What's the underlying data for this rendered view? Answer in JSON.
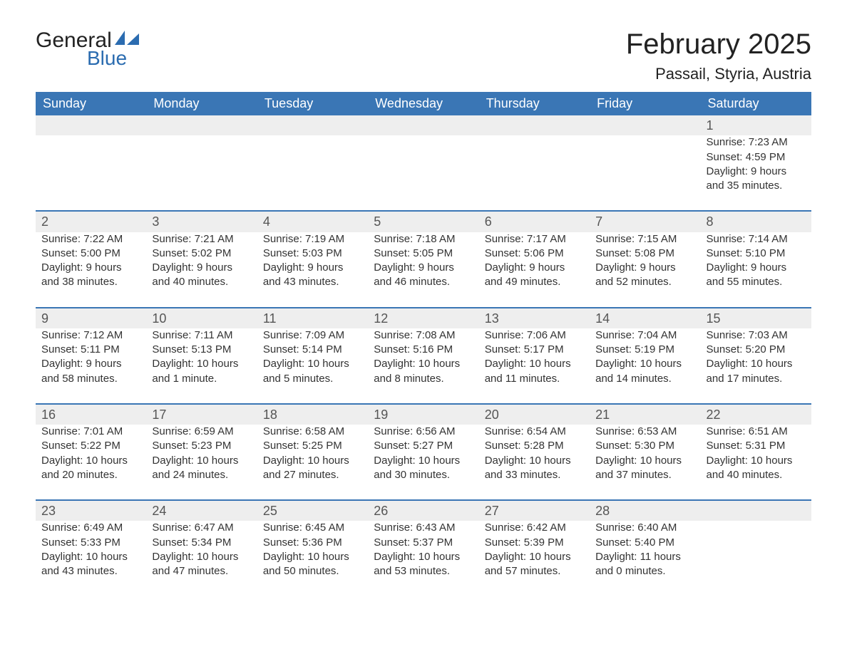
{
  "logo": {
    "general": "General",
    "blue": "Blue",
    "sail_color": "#2b6cb0"
  },
  "header": {
    "month_title": "February 2025",
    "location": "Passail, Styria, Austria"
  },
  "colors": {
    "header_bg": "#3a76b5",
    "header_text": "#ffffff",
    "daynum_bg": "#eeeeee",
    "daynum_border": "#3a76b5",
    "body_text": "#333333",
    "logo_blue": "#2b6cb0"
  },
  "weekdays": [
    "Sunday",
    "Monday",
    "Tuesday",
    "Wednesday",
    "Thursday",
    "Friday",
    "Saturday"
  ],
  "weeks": [
    [
      null,
      null,
      null,
      null,
      null,
      null,
      {
        "day": "1",
        "sunrise": "Sunrise: 7:23 AM",
        "sunset": "Sunset: 4:59 PM",
        "daylight": "Daylight: 9 hours and 35 minutes."
      }
    ],
    [
      {
        "day": "2",
        "sunrise": "Sunrise: 7:22 AM",
        "sunset": "Sunset: 5:00 PM",
        "daylight": "Daylight: 9 hours and 38 minutes."
      },
      {
        "day": "3",
        "sunrise": "Sunrise: 7:21 AM",
        "sunset": "Sunset: 5:02 PM",
        "daylight": "Daylight: 9 hours and 40 minutes."
      },
      {
        "day": "4",
        "sunrise": "Sunrise: 7:19 AM",
        "sunset": "Sunset: 5:03 PM",
        "daylight": "Daylight: 9 hours and 43 minutes."
      },
      {
        "day": "5",
        "sunrise": "Sunrise: 7:18 AM",
        "sunset": "Sunset: 5:05 PM",
        "daylight": "Daylight: 9 hours and 46 minutes."
      },
      {
        "day": "6",
        "sunrise": "Sunrise: 7:17 AM",
        "sunset": "Sunset: 5:06 PM",
        "daylight": "Daylight: 9 hours and 49 minutes."
      },
      {
        "day": "7",
        "sunrise": "Sunrise: 7:15 AM",
        "sunset": "Sunset: 5:08 PM",
        "daylight": "Daylight: 9 hours and 52 minutes."
      },
      {
        "day": "8",
        "sunrise": "Sunrise: 7:14 AM",
        "sunset": "Sunset: 5:10 PM",
        "daylight": "Daylight: 9 hours and 55 minutes."
      }
    ],
    [
      {
        "day": "9",
        "sunrise": "Sunrise: 7:12 AM",
        "sunset": "Sunset: 5:11 PM",
        "daylight": "Daylight: 9 hours and 58 minutes."
      },
      {
        "day": "10",
        "sunrise": "Sunrise: 7:11 AM",
        "sunset": "Sunset: 5:13 PM",
        "daylight": "Daylight: 10 hours and 1 minute."
      },
      {
        "day": "11",
        "sunrise": "Sunrise: 7:09 AM",
        "sunset": "Sunset: 5:14 PM",
        "daylight": "Daylight: 10 hours and 5 minutes."
      },
      {
        "day": "12",
        "sunrise": "Sunrise: 7:08 AM",
        "sunset": "Sunset: 5:16 PM",
        "daylight": "Daylight: 10 hours and 8 minutes."
      },
      {
        "day": "13",
        "sunrise": "Sunrise: 7:06 AM",
        "sunset": "Sunset: 5:17 PM",
        "daylight": "Daylight: 10 hours and 11 minutes."
      },
      {
        "day": "14",
        "sunrise": "Sunrise: 7:04 AM",
        "sunset": "Sunset: 5:19 PM",
        "daylight": "Daylight: 10 hours and 14 minutes."
      },
      {
        "day": "15",
        "sunrise": "Sunrise: 7:03 AM",
        "sunset": "Sunset: 5:20 PM",
        "daylight": "Daylight: 10 hours and 17 minutes."
      }
    ],
    [
      {
        "day": "16",
        "sunrise": "Sunrise: 7:01 AM",
        "sunset": "Sunset: 5:22 PM",
        "daylight": "Daylight: 10 hours and 20 minutes."
      },
      {
        "day": "17",
        "sunrise": "Sunrise: 6:59 AM",
        "sunset": "Sunset: 5:23 PM",
        "daylight": "Daylight: 10 hours and 24 minutes."
      },
      {
        "day": "18",
        "sunrise": "Sunrise: 6:58 AM",
        "sunset": "Sunset: 5:25 PM",
        "daylight": "Daylight: 10 hours and 27 minutes."
      },
      {
        "day": "19",
        "sunrise": "Sunrise: 6:56 AM",
        "sunset": "Sunset: 5:27 PM",
        "daylight": "Daylight: 10 hours and 30 minutes."
      },
      {
        "day": "20",
        "sunrise": "Sunrise: 6:54 AM",
        "sunset": "Sunset: 5:28 PM",
        "daylight": "Daylight: 10 hours and 33 minutes."
      },
      {
        "day": "21",
        "sunrise": "Sunrise: 6:53 AM",
        "sunset": "Sunset: 5:30 PM",
        "daylight": "Daylight: 10 hours and 37 minutes."
      },
      {
        "day": "22",
        "sunrise": "Sunrise: 6:51 AM",
        "sunset": "Sunset: 5:31 PM",
        "daylight": "Daylight: 10 hours and 40 minutes."
      }
    ],
    [
      {
        "day": "23",
        "sunrise": "Sunrise: 6:49 AM",
        "sunset": "Sunset: 5:33 PM",
        "daylight": "Daylight: 10 hours and 43 minutes."
      },
      {
        "day": "24",
        "sunrise": "Sunrise: 6:47 AM",
        "sunset": "Sunset: 5:34 PM",
        "daylight": "Daylight: 10 hours and 47 minutes."
      },
      {
        "day": "25",
        "sunrise": "Sunrise: 6:45 AM",
        "sunset": "Sunset: 5:36 PM",
        "daylight": "Daylight: 10 hours and 50 minutes."
      },
      {
        "day": "26",
        "sunrise": "Sunrise: 6:43 AM",
        "sunset": "Sunset: 5:37 PM",
        "daylight": "Daylight: 10 hours and 53 minutes."
      },
      {
        "day": "27",
        "sunrise": "Sunrise: 6:42 AM",
        "sunset": "Sunset: 5:39 PM",
        "daylight": "Daylight: 10 hours and 57 minutes."
      },
      {
        "day": "28",
        "sunrise": "Sunrise: 6:40 AM",
        "sunset": "Sunset: 5:40 PM",
        "daylight": "Daylight: 11 hours and 0 minutes."
      },
      null
    ]
  ]
}
